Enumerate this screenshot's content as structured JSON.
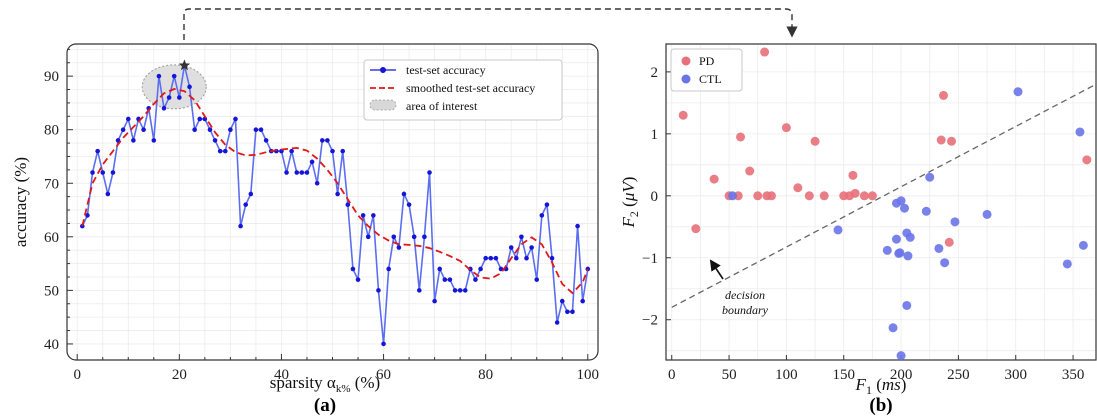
{
  "chart_data": [
    {
      "type": "line",
      "panel_label": "(a)",
      "xlabel": "sparsity α",
      "xlabel_sub": "k%",
      "xlabel_unit": " (%)",
      "ylabel": "accuracy (%)",
      "xlim": [
        -2,
        102
      ],
      "ylim": [
        37,
        96
      ],
      "xticks": [
        0,
        20,
        40,
        60,
        80,
        100
      ],
      "yticks": [
        40,
        50,
        60,
        70,
        80,
        90
      ],
      "grid": true,
      "legend_position": "top-right",
      "series": [
        {
          "name": "test-set accuracy",
          "color": "#1515d8",
          "x": [
            1,
            2,
            3,
            4,
            5,
            6,
            7,
            8,
            9,
            10,
            11,
            12,
            13,
            14,
            15,
            16,
            17,
            18,
            19,
            20,
            21,
            22,
            23,
            24,
            25,
            26,
            27,
            28,
            29,
            30,
            31,
            32,
            33,
            34,
            35,
            36,
            37,
            38,
            39,
            40,
            41,
            42,
            43,
            44,
            45,
            46,
            47,
            48,
            49,
            50,
            51,
            52,
            53,
            54,
            55,
            56,
            57,
            58,
            59,
            60,
            61,
            62,
            63,
            64,
            65,
            66,
            67,
            68,
            69,
            70,
            71,
            72,
            73,
            74,
            75,
            76,
            77,
            78,
            79,
            80,
            81,
            82,
            83,
            84,
            85,
            86,
            87,
            88,
            89,
            90,
            91,
            92,
            93,
            94,
            95,
            96,
            97,
            98,
            99,
            100
          ],
          "y": [
            62,
            64,
            72,
            76,
            72,
            68,
            72,
            78,
            80,
            82,
            78,
            82,
            80,
            84,
            78,
            90,
            84,
            86,
            90,
            86,
            92,
            88,
            80,
            82,
            82,
            80,
            78,
            76,
            76,
            80,
            82,
            62,
            66,
            68,
            80,
            80,
            78,
            76,
            76,
            76,
            72,
            76,
            72,
            72,
            72,
            74,
            70,
            78,
            78,
            76,
            68,
            76,
            66,
            54,
            52,
            64,
            60,
            64,
            50,
            40,
            54,
            60,
            58,
            68,
            66,
            60,
            50,
            60,
            72,
            48,
            54,
            52,
            52,
            50,
            50,
            50,
            54,
            52,
            54,
            56,
            56,
            56,
            54,
            54,
            58,
            56,
            60,
            56,
            58,
            52,
            64,
            66,
            56,
            44,
            48,
            46,
            46,
            62,
            48,
            54
          ]
        },
        {
          "name": "smoothed test-set accuracy",
          "color": "#e01818",
          "x": [
            1,
            3,
            5,
            7,
            9,
            11,
            13,
            15,
            17,
            19,
            21,
            23,
            25,
            27,
            29,
            31,
            33,
            35,
            37,
            39,
            41,
            43,
            45,
            47,
            49,
            51,
            53,
            55,
            57,
            59,
            61,
            63,
            65,
            67,
            69,
            71,
            73,
            75,
            77,
            79,
            81,
            83,
            85,
            87,
            89,
            91,
            93,
            95,
            97,
            99,
            100
          ],
          "y": [
            62,
            70,
            73.5,
            76,
            78.5,
            80.5,
            82.5,
            84.8,
            86.8,
            87.6,
            87.2,
            85.5,
            82.5,
            79.5,
            77.2,
            75.8,
            75.2,
            75.3,
            75.8,
            76.2,
            76.4,
            76.6,
            76.1,
            74.6,
            72.5,
            70,
            67,
            64,
            62,
            60.4,
            59.3,
            58.6,
            58.5,
            58.3,
            57.9,
            57.2,
            56.4,
            55.5,
            53.8,
            52.4,
            52.2,
            53.2,
            56,
            58.6,
            59.9,
            58.6,
            55.2,
            51.2,
            49.5,
            51.5,
            54
          ]
        }
      ],
      "highlight": {
        "label": "area of interest",
        "x": 21,
        "y": 92,
        "marker": "star"
      }
    },
    {
      "type": "scatter",
      "panel_label": "(b)",
      "xlabel_var": "F",
      "xlabel_sub": "1",
      "xlabel_unit": "ms",
      "ylabel_var": "F",
      "ylabel_sub": "2",
      "ylabel_unit": "μV",
      "xlim": [
        -5,
        370
      ],
      "ylim": [
        -2.65,
        2.45
      ],
      "xticks": [
        0,
        50,
        100,
        150,
        200,
        250,
        300,
        350
      ],
      "yticks": [
        -2,
        -1,
        0,
        1,
        2
      ],
      "grid": true,
      "legend_position": "top-left",
      "series": [
        {
          "name": "PD",
          "color": "#e8707a",
          "points": [
            [
              10,
              1.3
            ],
            [
              21,
              -0.53
            ],
            [
              37,
              0.27
            ],
            [
              50,
              0.0
            ],
            [
              58,
              0.0
            ],
            [
              60,
              0.95
            ],
            [
              68,
              0.4
            ],
            [
              75,
              0.0
            ],
            [
              81,
              2.32
            ],
            [
              83,
              0.0
            ],
            [
              87,
              0.0
            ],
            [
              100,
              1.1
            ],
            [
              110,
              0.13
            ],
            [
              120,
              0.0
            ],
            [
              125,
              0.88
            ],
            [
              133,
              0.0
            ],
            [
              150,
              0.0
            ],
            [
              155,
              0.0
            ],
            [
              158,
              0.33
            ],
            [
              160,
              0.04
            ],
            [
              168,
              0.0
            ],
            [
              175,
              0.0
            ],
            [
              235,
              0.9
            ],
            [
              237,
              1.62
            ],
            [
              242,
              -0.75
            ],
            [
              244,
              0.88
            ],
            [
              362,
              0.58
            ]
          ]
        },
        {
          "name": "CTL",
          "color": "#6a74e8",
          "points": [
            [
              53,
              0.0
            ],
            [
              145,
              -0.55
            ],
            [
              188,
              -0.88
            ],
            [
              193,
              -2.13
            ],
            [
              196,
              -0.12
            ],
            [
              196,
              -0.7
            ],
            [
              198,
              -0.93
            ],
            [
              199,
              -0.92
            ],
            [
              200,
              -2.58
            ],
            [
              200,
              -0.08
            ],
            [
              203,
              -0.2
            ],
            [
              205,
              -0.6
            ],
            [
              205,
              -1.77
            ],
            [
              206,
              -0.97
            ],
            [
              208,
              -0.67
            ],
            [
              222,
              -0.25
            ],
            [
              225,
              0.3
            ],
            [
              233,
              -0.85
            ],
            [
              238,
              -1.08
            ],
            [
              247,
              -0.42
            ],
            [
              275,
              -0.3
            ],
            [
              302,
              1.68
            ],
            [
              345,
              -1.1
            ],
            [
              356,
              1.03
            ],
            [
              359,
              -0.8
            ]
          ]
        }
      ],
      "decision_boundary": {
        "x": [
          0,
          370
        ],
        "y": [
          -1.8,
          1.8
        ]
      },
      "annotation": {
        "line1": "decision",
        "line2": "boundary",
        "x": 35,
        "y": -1.5
      }
    }
  ]
}
